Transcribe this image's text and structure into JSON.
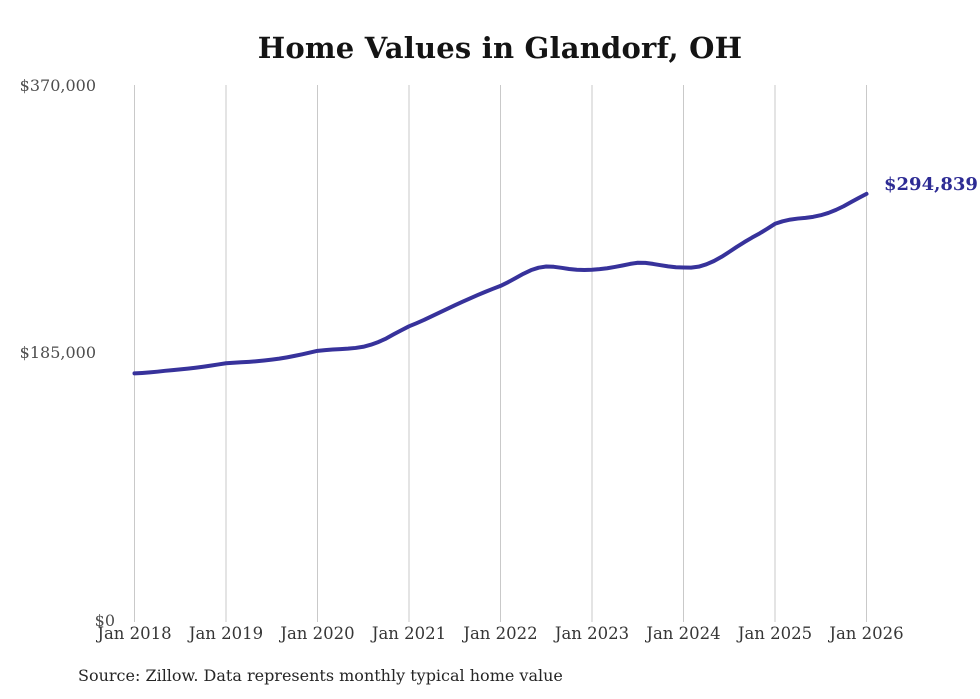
{
  "title": "Home Values in Glandorf, OH",
  "source_note": "Source: Zillow. Data represents monthly typical home value",
  "colors": {
    "line": "#37329b",
    "end_label": "#2d2b94",
    "gridline": "#c9c9c9",
    "title_text": "#141414",
    "axis_text": "#4d4d4d"
  },
  "chart_data": {
    "type": "line",
    "title": "Home Values in Glandorf, OH",
    "xlabel": "",
    "ylabel": "",
    "unit": "USD",
    "legend": "none",
    "grid": "vertical-yearly-gridlines-only",
    "ylim": [
      0,
      370000
    ],
    "y_ticks": [
      {
        "value": 0,
        "label": "$0"
      },
      {
        "value": 185000,
        "label": "$185,000"
      },
      {
        "value": 370000,
        "label": "$370,000"
      }
    ],
    "x_tick_labels": [
      "Jan 2018",
      "Jan 2019",
      "Jan 2020",
      "Jan 2021",
      "Jan 2022",
      "Jan 2023",
      "Jan 2024",
      "Jan 2025",
      "Jan 2026"
    ],
    "start_month": "Jan 2018",
    "end_month": "Jan 2026",
    "end_value": 294839,
    "end_label": "$294,839",
    "monthly_values": [
      170900,
      171200,
      171600,
      172100,
      172700,
      173200,
      173700,
      174200,
      174800,
      175500,
      176300,
      177100,
      177900,
      178300,
      178600,
      178900,
      179300,
      179800,
      180400,
      181100,
      182000,
      183000,
      184100,
      185300,
      186500,
      187000,
      187400,
      187700,
      188000,
      188500,
      189300,
      190700,
      192600,
      195000,
      197900,
      200700,
      203400,
      205600,
      207900,
      210400,
      212900,
      215400,
      217900,
      220300,
      222700,
      225000,
      227200,
      229300,
      231300,
      233900,
      236800,
      239700,
      242200,
      243900,
      244700,
      244500,
      243800,
      243000,
      242500,
      242300,
      242500,
      242900,
      243500,
      244400,
      245400,
      246500,
      247300,
      247200,
      246500,
      245600,
      244800,
      244200,
      244000,
      243900,
      244600,
      246200,
      248500,
      251400,
      254800,
      258300,
      261600,
      264700,
      267600,
      270800,
      274200,
      275900,
      277100,
      277800,
      278300,
      279000,
      280100,
      281700,
      283800,
      286300,
      289200,
      292100,
      294839
    ]
  }
}
